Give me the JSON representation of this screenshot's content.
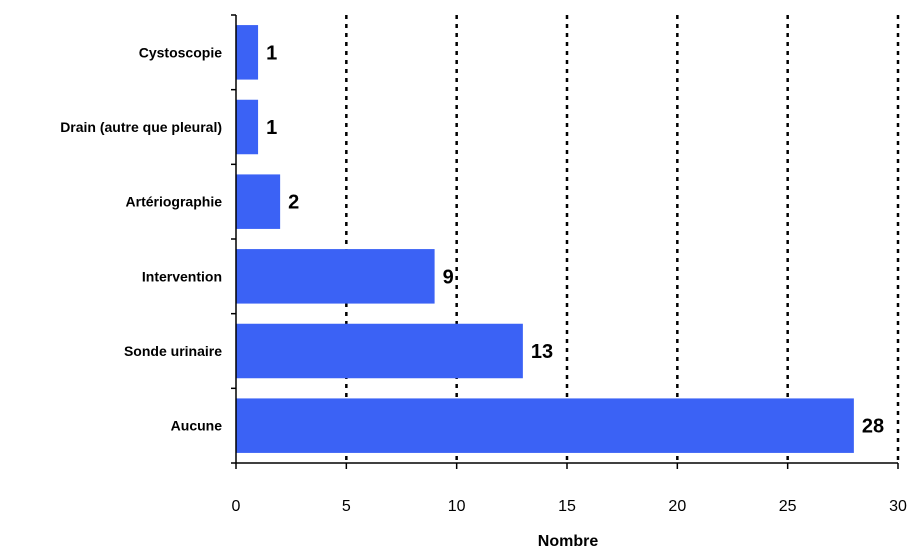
{
  "chart_data": {
    "type": "bar",
    "orientation": "horizontal",
    "categories": [
      "Cystoscopie",
      "Drain (autre que pleural)",
      "Artériographie",
      "Intervention",
      "Sonde urinaire",
      "Aucune"
    ],
    "values": [
      1,
      1,
      2,
      9,
      13,
      28
    ],
    "data_labels": [
      "1",
      "1",
      "2",
      "9",
      "13",
      "28"
    ],
    "title": "",
    "xlabel": "Nombre",
    "ylabel": "",
    "xlim": [
      0,
      30
    ],
    "x_ticks": [
      0,
      5,
      10,
      15,
      20,
      25,
      30
    ],
    "x_tick_labels": [
      "0",
      "5",
      "10",
      "15",
      "20",
      "25",
      "30"
    ],
    "grid": "vertical-dotted",
    "legend": "none",
    "colors": {
      "bar": "#3b62f5",
      "grid": "#000000",
      "axis": "#000000"
    }
  }
}
